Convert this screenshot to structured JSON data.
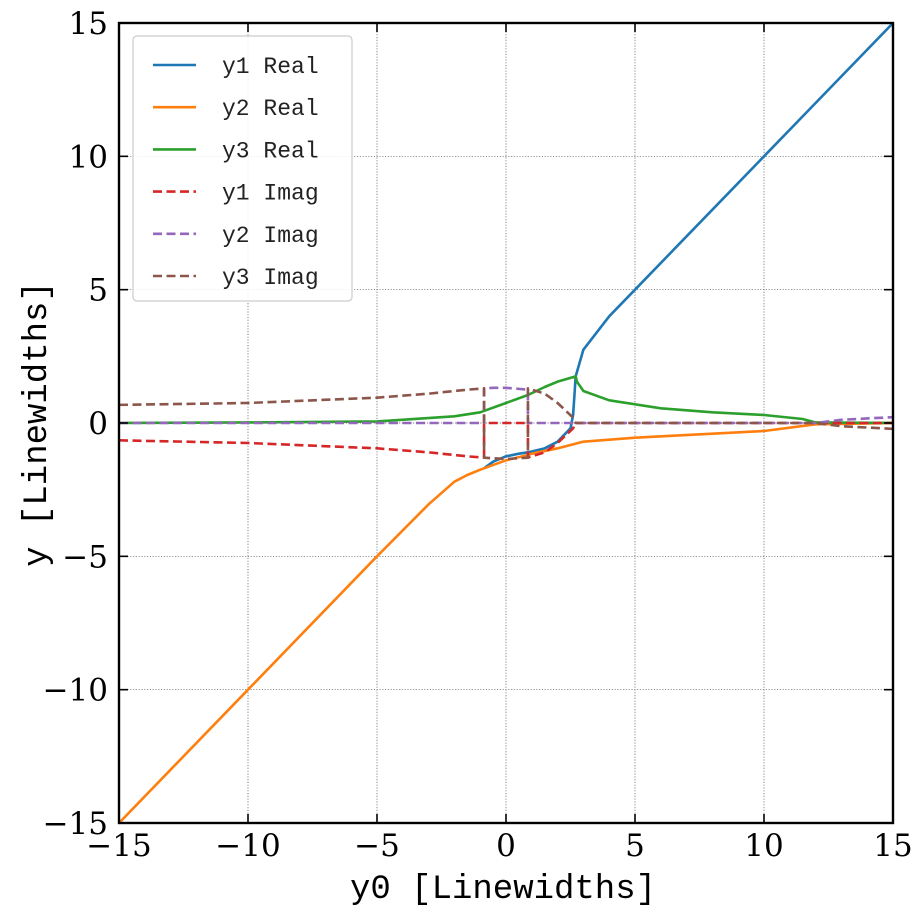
{
  "chart_data": {
    "type": "line",
    "xlabel": "y0 [Linewidths]",
    "ylabel": "y [Linewidths]",
    "xlim": [
      -15,
      15
    ],
    "ylim": [
      -15,
      15
    ],
    "xticks": [
      -15,
      -10,
      -5,
      0,
      5,
      10,
      15
    ],
    "yticks": [
      -15,
      -10,
      -5,
      0,
      5,
      10,
      15
    ],
    "xtick_labels": [
      "−15",
      "−10",
      "−5",
      "0",
      "5",
      "10",
      "15"
    ],
    "ytick_labels": [
      "−15",
      "−10",
      "−5",
      "0",
      "5",
      "10",
      "15"
    ],
    "grid": true,
    "legend_position": "top-left",
    "series": [
      {
        "name": "y1 Real",
        "color": "#1f77b4",
        "dash": "solid",
        "x": [
          -0.85,
          -0.5,
          0.0,
          0.5,
          0.85,
          1.5,
          2.0,
          2.5,
          2.6,
          2.65,
          2.7,
          3.0,
          4.0,
          5.0,
          7.0,
          10.0,
          12.0,
          15.0
        ],
        "y": [
          -1.7,
          -1.45,
          -1.25,
          -1.15,
          -1.1,
          -0.95,
          -0.7,
          -0.2,
          0.3,
          1.0,
          1.75,
          2.75,
          4.0,
          5.0,
          7.0,
          10.0,
          12.0,
          15.0
        ]
      },
      {
        "name": "y2 Real",
        "color": "#ff7f0e",
        "dash": "solid",
        "x": [
          -15,
          -10,
          -5,
          -3,
          -2,
          -1.5,
          -1.0,
          -0.85,
          -0.85,
          0.0,
          0.85,
          1.0,
          2.0,
          3.0,
          5.0,
          8.0,
          10.0,
          12.0,
          15.0
        ],
        "y": [
          -15,
          -10,
          -5,
          -3.05,
          -2.2,
          -1.95,
          -1.75,
          -1.7,
          -1.7,
          -1.4,
          -1.2,
          -1.15,
          -0.95,
          -0.7,
          -0.55,
          -0.4,
          -0.3,
          -0.05,
          0.0
        ],
        "note": ""
      },
      {
        "name": "y3 Real",
        "color": "#2ca02c",
        "dash": "solid",
        "x": [
          -15,
          -10,
          -5,
          -2,
          -1,
          0,
          0.85,
          1.5,
          2.0,
          2.7,
          2.75,
          3.0,
          4.0,
          6.0,
          8.0,
          10.0,
          11.5,
          12.0,
          15.0
        ],
        "y": [
          0.0,
          0.02,
          0.06,
          0.25,
          0.4,
          0.75,
          1.05,
          1.35,
          1.55,
          1.75,
          1.55,
          1.2,
          0.85,
          0.55,
          0.4,
          0.3,
          0.15,
          0.02,
          0.0
        ]
      },
      {
        "name": "y1 Imag",
        "color": "#d62728",
        "dash": "dashed",
        "x": [
          -15,
          -10,
          -5,
          -3,
          -1.5,
          -0.85,
          -0.85,
          0.85,
          0.85,
          1.0,
          1.5,
          2.0,
          2.6,
          2.7,
          15.0
        ],
        "y": [
          -0.65,
          -0.75,
          -0.95,
          -1.1,
          -1.25,
          -1.3,
          0.0,
          0.0,
          -1.3,
          -1.25,
          -1.1,
          -0.75,
          -0.2,
          0.0,
          0.0
        ]
      },
      {
        "name": "y2 Imag",
        "color": "#9467bd",
        "dash": "dashed",
        "x": [
          -15,
          -0.85,
          -0.85,
          -0.5,
          0.0,
          0.5,
          0.85,
          0.85,
          12.0,
          13.0,
          15.0
        ],
        "y": [
          0.0,
          0.0,
          1.3,
          1.32,
          1.32,
          1.28,
          1.25,
          0.0,
          0.0,
          0.12,
          0.22
        ]
      },
      {
        "name": "y3 Imag",
        "color": "#8c564b",
        "dash": "dashed",
        "x": [
          -15,
          -10,
          -5,
          -3,
          -1.5,
          -0.85,
          -0.85,
          0.0,
          0.85,
          0.85,
          1.0,
          1.5,
          2.0,
          2.6,
          2.7,
          12.0,
          13.0,
          15.0
        ],
        "y": [
          0.68,
          0.75,
          0.95,
          1.1,
          1.25,
          1.3,
          -1.3,
          -1.35,
          -1.3,
          1.3,
          1.25,
          1.1,
          0.75,
          0.2,
          0.0,
          0.0,
          -0.12,
          -0.22
        ]
      }
    ]
  }
}
